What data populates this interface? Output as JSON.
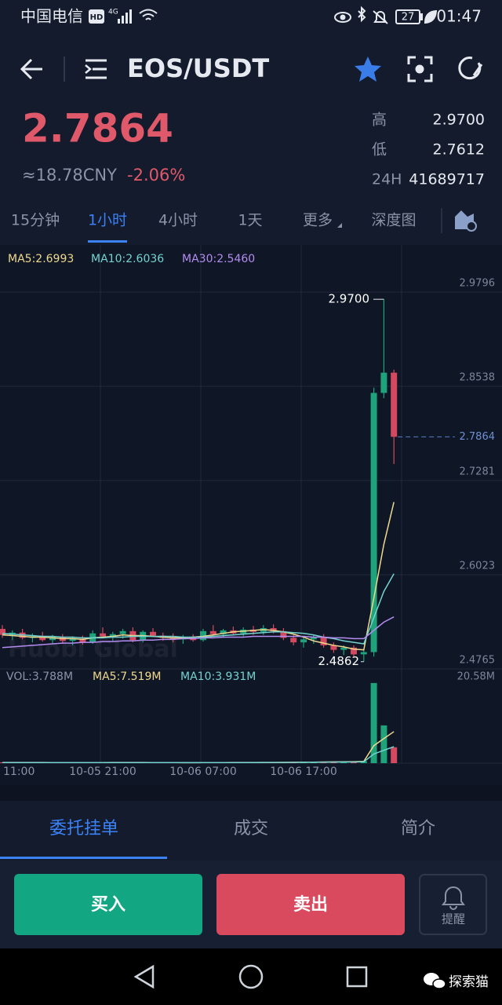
{
  "status_bar": {
    "carrier": "中国电信",
    "network": [
      "HD",
      "4G"
    ],
    "battery": "27",
    "time": "01:47"
  },
  "header": {
    "pair": "EOS/USDT"
  },
  "ticker": {
    "price": "2.7864",
    "cny": "≈18.78CNY",
    "change": "-2.06%",
    "stats": [
      {
        "label": "高",
        "value": "2.9700"
      },
      {
        "label": "低",
        "value": "2.7612"
      },
      {
        "label": "24H",
        "value": "41689717"
      }
    ]
  },
  "intervals": {
    "items": [
      "15分钟",
      "1小时",
      "4小时",
      "1天",
      "更多",
      "深度图"
    ],
    "active": "1小时"
  },
  "chart_data": {
    "type": "candlestick",
    "watermark": "Huobi Global",
    "up_color": "#1ea37a",
    "down_color": "#d34a60",
    "categories": [
      "11:00",
      null,
      null,
      null,
      null,
      null,
      null,
      null,
      null,
      null,
      "10-05 21:00",
      null,
      null,
      null,
      null,
      null,
      null,
      null,
      null,
      null,
      "10-06 07:00",
      null,
      null,
      null,
      null,
      null,
      null,
      null,
      null,
      null,
      "10-06 17:00",
      null,
      null,
      null,
      null,
      null,
      null,
      null,
      null,
      null
    ],
    "candles": [
      [
        2.53,
        2.535,
        2.518,
        2.522
      ],
      [
        2.522,
        2.528,
        2.515,
        2.525
      ],
      [
        2.525,
        2.53,
        2.516,
        2.518
      ],
      [
        2.518,
        2.524,
        2.512,
        2.52
      ],
      [
        2.52,
        2.526,
        2.513,
        2.515
      ],
      [
        2.515,
        2.522,
        2.51,
        2.519
      ],
      [
        2.519,
        2.523,
        2.511,
        2.514
      ],
      [
        2.514,
        2.52,
        2.508,
        2.517
      ],
      [
        2.517,
        2.521,
        2.509,
        2.512
      ],
      [
        2.512,
        2.528,
        2.51,
        2.524
      ],
      [
        2.524,
        2.532,
        2.518,
        2.52
      ],
      [
        2.52,
        2.526,
        2.514,
        2.523
      ],
      [
        2.523,
        2.53,
        2.517,
        2.527
      ],
      [
        2.527,
        2.532,
        2.512,
        2.515
      ],
      [
        2.515,
        2.528,
        2.512,
        2.526
      ],
      [
        2.526,
        2.531,
        2.519,
        2.521
      ],
      [
        2.521,
        2.525,
        2.514,
        2.518
      ],
      [
        2.518,
        2.524,
        2.512,
        2.516
      ],
      [
        2.516,
        2.522,
        2.51,
        2.519
      ],
      [
        2.519,
        2.523,
        2.513,
        2.515
      ],
      [
        2.515,
        2.53,
        2.513,
        2.527
      ],
      [
        2.527,
        2.535,
        2.52,
        2.523
      ],
      [
        2.523,
        2.53,
        2.518,
        2.528
      ],
      [
        2.528,
        2.533,
        2.521,
        2.524
      ],
      [
        2.524,
        2.532,
        2.52,
        2.529
      ],
      [
        2.529,
        2.534,
        2.522,
        2.526
      ],
      [
        2.526,
        2.535,
        2.522,
        2.531
      ],
      [
        2.531,
        2.536,
        2.524,
        2.527
      ],
      [
        2.527,
        2.531,
        2.515,
        2.518
      ],
      [
        2.518,
        2.522,
        2.508,
        2.512
      ],
      [
        2.512,
        2.52,
        2.505,
        2.516
      ],
      [
        2.516,
        2.522,
        2.51,
        2.519
      ],
      [
        2.519,
        2.523,
        2.505,
        2.508
      ],
      [
        2.508,
        2.512,
        2.498,
        2.502
      ],
      [
        2.502,
        2.508,
        2.495,
        2.505
      ],
      [
        2.505,
        2.508,
        2.492,
        2.496
      ],
      [
        2.496,
        2.502,
        2.4862,
        2.499
      ],
      [
        2.499,
        2.852,
        2.493,
        2.845
      ],
      [
        2.845,
        2.97,
        2.838,
        2.872
      ],
      [
        2.872,
        2.876,
        2.75,
        2.7864
      ]
    ],
    "series": [
      {
        "name": "MA5:2.6993",
        "color": "#efd98e",
        "values": [
          2.522,
          2.521,
          2.52,
          2.519,
          2.519,
          2.518,
          2.517,
          2.517,
          2.516,
          2.518,
          2.519,
          2.52,
          2.522,
          2.521,
          2.521,
          2.52,
          2.519,
          2.518,
          2.518,
          2.519,
          2.52,
          2.522,
          2.524,
          2.526,
          2.527,
          2.528,
          2.529,
          2.528,
          2.526,
          2.523,
          2.519,
          2.514,
          2.511,
          2.508,
          2.506,
          2.503,
          2.502,
          2.571,
          2.643,
          2.6993
        ]
      },
      {
        "name": "MA10:2.6036",
        "color": "#74d3d0",
        "values": [
          2.524,
          2.523,
          2.522,
          2.521,
          2.52,
          2.52,
          2.519,
          2.519,
          2.518,
          2.518,
          2.518,
          2.519,
          2.519,
          2.52,
          2.52,
          2.52,
          2.52,
          2.52,
          2.519,
          2.519,
          2.519,
          2.52,
          2.521,
          2.522,
          2.523,
          2.524,
          2.525,
          2.526,
          2.526,
          2.525,
          2.524,
          2.522,
          2.519,
          2.517,
          2.514,
          2.512,
          2.51,
          2.545,
          2.58,
          2.6036
        ]
      },
      {
        "name": "MA30:2.5460",
        "color": "#b48cf0",
        "values": [
          2.505,
          2.506,
          2.507,
          2.508,
          2.509,
          2.51,
          2.511,
          2.511,
          2.512,
          2.512,
          2.513,
          2.513,
          2.514,
          2.514,
          2.515,
          2.515,
          2.516,
          2.516,
          2.517,
          2.517,
          2.518,
          2.518,
          2.519,
          2.519,
          2.519,
          2.52,
          2.52,
          2.52,
          2.52,
          2.52,
          2.52,
          2.519,
          2.519,
          2.518,
          2.518,
          2.517,
          2.517,
          2.528,
          2.539,
          2.546
        ]
      }
    ],
    "ylim": [
      2.4765,
      3.0425
    ],
    "yticks": [
      2.4765,
      2.6023,
      2.7281,
      2.8538,
      2.9796
    ],
    "last_price": 2.7864,
    "high_label": {
      "value": 2.97,
      "label": "2.9700"
    },
    "low_label": 2.4862,
    "volume": {
      "values": [
        0.2,
        0.15,
        0.18,
        0.12,
        0.14,
        0.1,
        0.12,
        0.15,
        0.11,
        0.2,
        0.18,
        0.14,
        0.16,
        0.2,
        0.15,
        0.12,
        0.1,
        0.13,
        0.11,
        0.12,
        0.2,
        0.18,
        0.15,
        0.17,
        0.14,
        0.16,
        0.2,
        0.15,
        0.25,
        0.3,
        0.28,
        0.22,
        0.35,
        0.4,
        0.38,
        0.45,
        0.5,
        19.1,
        9.0,
        3.788
      ],
      "label": "VOL:3.788M",
      "series": [
        {
          "name": "MA5:7.519M",
          "color": "#efd98e",
          "values": [
            0.16,
            0.16,
            0.16,
            0.16,
            0.16,
            0.14,
            0.14,
            0.13,
            0.13,
            0.14,
            0.15,
            0.16,
            0.16,
            0.17,
            0.17,
            0.15,
            0.14,
            0.14,
            0.12,
            0.12,
            0.13,
            0.15,
            0.15,
            0.16,
            0.17,
            0.16,
            0.16,
            0.16,
            0.18,
            0.22,
            0.24,
            0.24,
            0.28,
            0.31,
            0.33,
            0.36,
            0.42,
            4.17,
            5.87,
            7.519
          ]
        },
        {
          "name": "MA10:3.931M",
          "color": "#74d3d0",
          "values": [
            0.15,
            0.15,
            0.15,
            0.15,
            0.15,
            0.15,
            0.15,
            0.15,
            0.15,
            0.15,
            0.15,
            0.15,
            0.15,
            0.15,
            0.15,
            0.15,
            0.15,
            0.15,
            0.14,
            0.14,
            0.14,
            0.15,
            0.15,
            0.15,
            0.15,
            0.15,
            0.16,
            0.16,
            0.17,
            0.18,
            0.2,
            0.21,
            0.23,
            0.25,
            0.27,
            0.29,
            0.32,
            2.2,
            3.07,
            3.931
          ]
        }
      ],
      "ylim": [
        0,
        20.58
      ],
      "yticks": [
        {
          "value": 20.58,
          "label": "20.58M"
        }
      ]
    }
  },
  "tabs": {
    "items": [
      "委托挂单",
      "成交",
      "简介"
    ],
    "active": "委托挂单"
  },
  "actions": {
    "buy": "买入",
    "sell": "卖出",
    "alert": "提醒"
  },
  "watermark": "探索猫"
}
